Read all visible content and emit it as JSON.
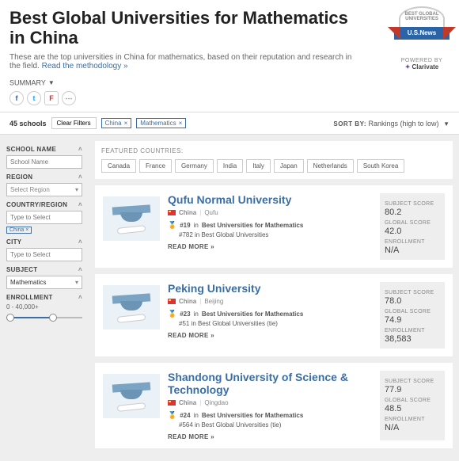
{
  "header": {
    "title": "Best Global Universities for Mathematics in China",
    "subtitle_pre": "These are the top universities in China for mathematics, based on their reputation and research in the field. ",
    "subtitle_link": "Read the methodology »",
    "badge_top": "BEST GLOBAL UNIVERSITIES",
    "badge_banner": "U.S.News",
    "powered_label": "POWERED BY",
    "powered_by": "Clarivate",
    "summary_label": "SUMMARY"
  },
  "filterbar": {
    "count": "45 schools",
    "clear": "Clear Filters",
    "tags": [
      "China",
      "Mathematics"
    ],
    "sort_label": "SORT BY:",
    "sort_value": "Rankings (high to low)"
  },
  "sidebar": {
    "school_label": "SCHOOL NAME",
    "school_ph": "School Name",
    "region_label": "REGION",
    "region_ph": "Select Region",
    "country_label": "COUNTRY/REGION",
    "country_ph": "Type to Select",
    "country_tag": "China",
    "city_label": "CITY",
    "city_ph": "Type to Select",
    "subject_label": "SUBJECT",
    "subject_val": "Mathematics",
    "enroll_label": "ENROLLMENT",
    "enroll_range": "0 - 40,000+"
  },
  "featured": {
    "label": "FEATURED COUNTRIES:",
    "items": [
      "Canada",
      "France",
      "Germany",
      "India",
      "Italy",
      "Japan",
      "Netherlands",
      "South Korea"
    ]
  },
  "cards": [
    {
      "name": "Qufu Normal University",
      "country": "China",
      "city": "Qufu",
      "rank1_num": "#19",
      "rank1_in": "in",
      "rank1_cat": "Best Universities for Mathematics",
      "rank2": "#782 in Best Global Universities",
      "readmore": "READ MORE »",
      "subj_label": "SUBJECT SCORE",
      "subj": "80.2",
      "glob_label": "GLOBAL SCORE",
      "glob": "42.0",
      "enr_label": "ENROLLMENT",
      "enr": "N/A"
    },
    {
      "name": "Peking University",
      "country": "China",
      "city": "Beijing",
      "rank1_num": "#23",
      "rank1_in": "in",
      "rank1_cat": "Best Universities for Mathematics",
      "rank2": "#51 in Best Global Universities (tie)",
      "readmore": "READ MORE »",
      "subj_label": "SUBJECT SCORE",
      "subj": "78.0",
      "glob_label": "GLOBAL SCORE",
      "glob": "74.9",
      "enr_label": "ENROLLMENT",
      "enr": "38,583"
    },
    {
      "name": "Shandong University of Science & Technology",
      "country": "China",
      "city": "Qingdao",
      "rank1_num": "#24",
      "rank1_in": "in",
      "rank1_cat": "Best Universities for Mathematics",
      "rank2": "#564 in Best Global Universities (tie)",
      "readmore": "READ MORE »",
      "subj_label": "SUBJECT SCORE",
      "subj": "77.9",
      "glob_label": "GLOBAL SCORE",
      "glob": "48.5",
      "enr_label": "ENROLLMENT",
      "enr": "N/A"
    }
  ]
}
